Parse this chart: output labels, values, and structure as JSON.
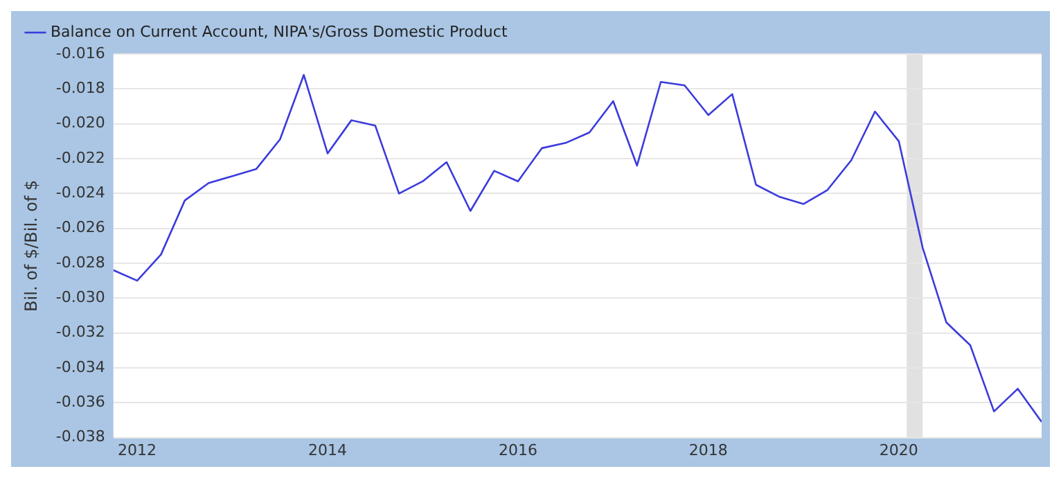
{
  "chart_data": {
    "type": "line",
    "ylabel": "Bil. of $/Bil. of $",
    "x": [
      "2011-10",
      "2012-01",
      "2012-04",
      "2012-07",
      "2012-10",
      "2013-01",
      "2013-04",
      "2013-07",
      "2013-10",
      "2014-01",
      "2014-04",
      "2014-07",
      "2014-10",
      "2015-01",
      "2015-04",
      "2015-07",
      "2015-10",
      "2016-01",
      "2016-04",
      "2016-07",
      "2016-10",
      "2017-01",
      "2017-04",
      "2017-07",
      "2017-10",
      "2018-01",
      "2018-04",
      "2018-07",
      "2018-10",
      "2019-01",
      "2019-04",
      "2019-07",
      "2019-10",
      "2020-01",
      "2020-04",
      "2020-07",
      "2020-10",
      "2021-01",
      "2021-04",
      "2021-07"
    ],
    "series": [
      {
        "name": "Balance on Current Account, NIPA's/Gross Domestic Product",
        "color": "#3b3bdc",
        "values": [
          -0.0284,
          -0.029,
          -0.0275,
          -0.0244,
          -0.0234,
          -0.023,
          -0.0226,
          -0.0209,
          -0.0172,
          -0.0217,
          -0.0198,
          -0.0201,
          -0.024,
          -0.0233,
          -0.0222,
          -0.025,
          -0.0227,
          -0.0233,
          -0.0214,
          -0.0211,
          -0.0205,
          -0.0187,
          -0.0224,
          -0.0176,
          -0.0178,
          -0.0195,
          -0.0183,
          -0.0235,
          -0.0242,
          -0.0246,
          -0.0238,
          -0.0221,
          -0.0193,
          -0.021,
          -0.0271,
          -0.0314,
          -0.0327,
          -0.0365,
          -0.0352,
          -0.0371
        ]
      }
    ],
    "xlim": [
      "2011-10",
      "2021-07"
    ],
    "xticks": [
      "2012",
      "2014",
      "2016",
      "2018",
      "2020"
    ],
    "ylim": [
      -0.038,
      -0.016
    ],
    "yticks": [
      -0.038,
      -0.036,
      -0.034,
      -0.032,
      {
        "value": -0.03,
        "label": "-0.030"
      },
      -0.028,
      -0.026,
      -0.024,
      -0.022,
      {
        "value": -0.02,
        "label": "-0.020"
      },
      -0.018,
      -0.016
    ],
    "bands": [
      {
        "axis": "x",
        "from": "2020-02",
        "to": "2020-04",
        "color": "#e1e1e1"
      }
    ],
    "grid": "y",
    "legend": "top left",
    "marker": "none",
    "line_style": "solid"
  }
}
